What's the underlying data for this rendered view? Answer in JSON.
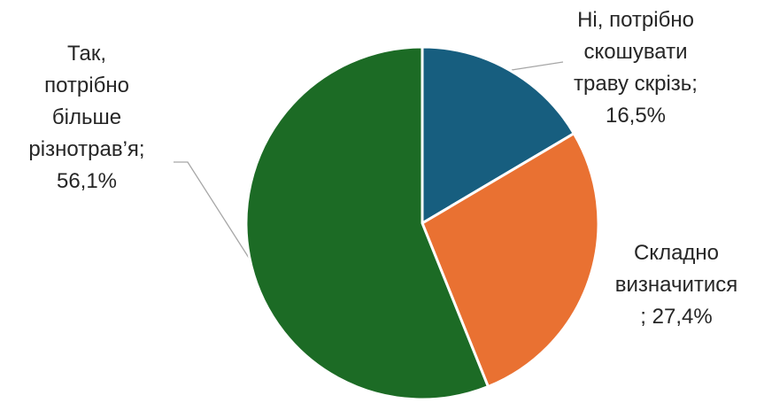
{
  "chart_data": {
    "type": "pie",
    "title": "",
    "slices": [
      {
        "label": "Ні, потрібно скошувати траву скрізь",
        "value": 16.5,
        "display": "16,5%",
        "color": "#175E7F"
      },
      {
        "label": "Складно визначитися",
        "value": 27.4,
        "display": "27,4%",
        "color": "#E97132"
      },
      {
        "label": "Так, потрібно більше різнотрав’я",
        "value": 56.1,
        "display": "56,1%",
        "color": "#1C6B25"
      }
    ]
  },
  "labels": [
    {
      "lines": [
        "Ні, потрібно",
        "скошувати",
        "траву скрізь;",
        "16,5%"
      ]
    },
    {
      "lines": [
        "Складно",
        "визначитися",
        "; 27,4%"
      ]
    },
    {
      "lines": [
        "Так,",
        "потрібно",
        "більше",
        "різнотрав’я;",
        "56,1%"
      ]
    }
  ]
}
